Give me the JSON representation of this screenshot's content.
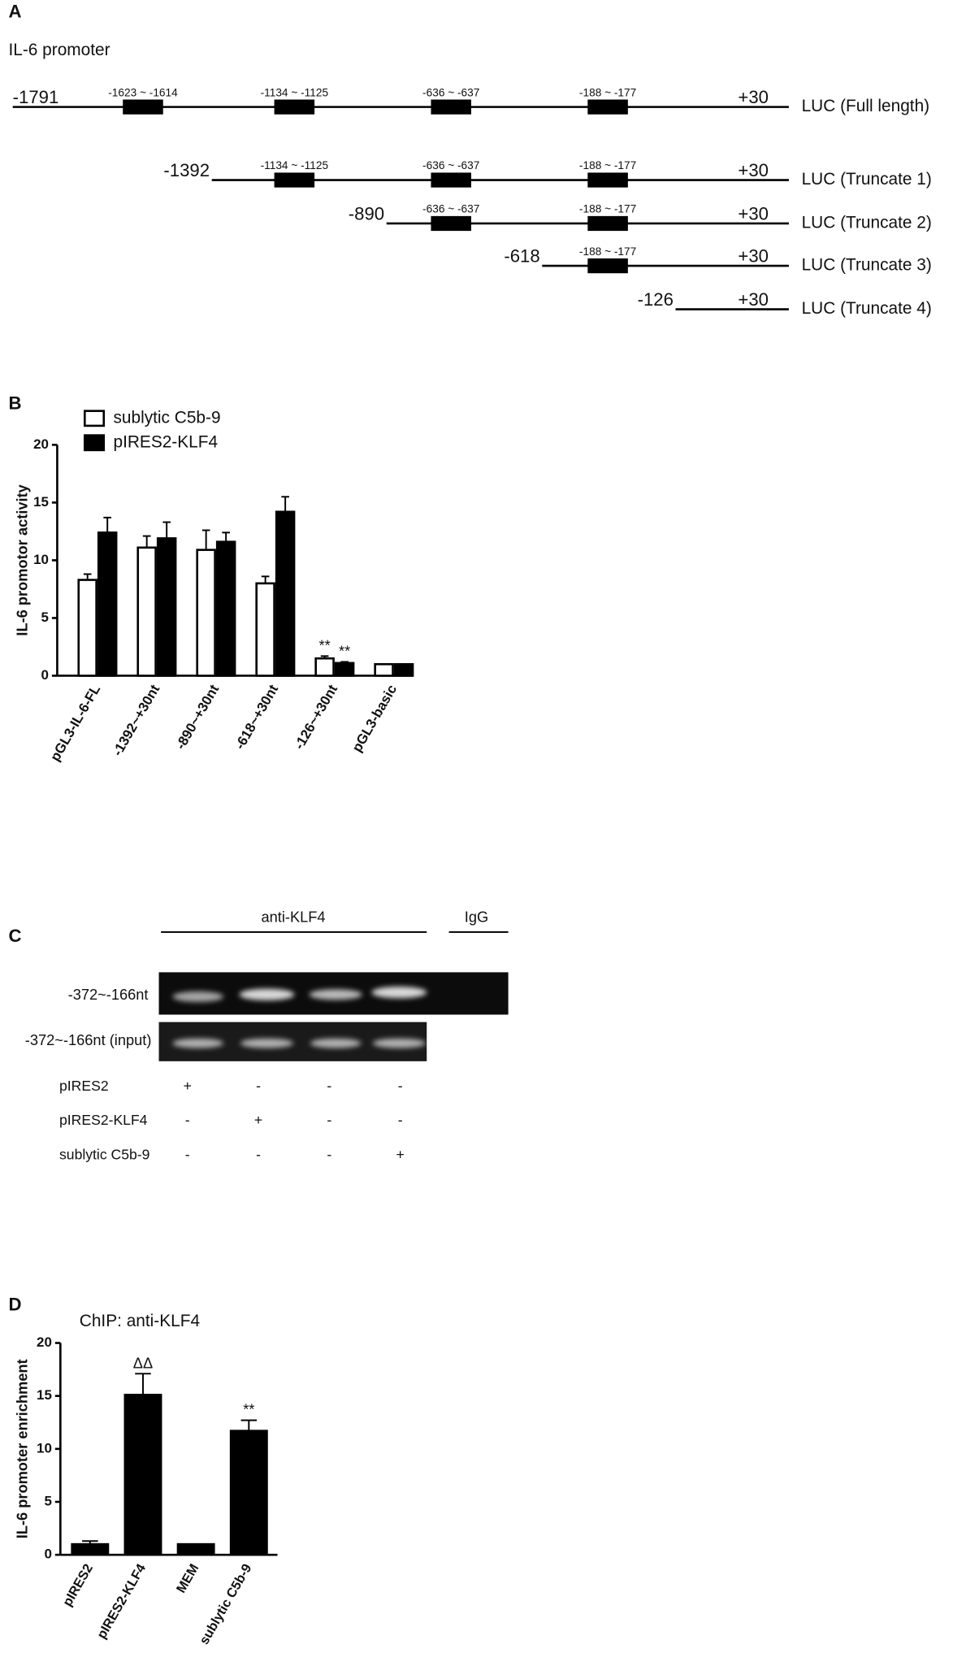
{
  "panel_a": {
    "label": "A",
    "title": "IL-6 promoter",
    "constructs": [
      {
        "start": "-1791",
        "end": "+30",
        "name": "LUC (Full length)",
        "sites": [
          "-1623 ~ -1614",
          "-1134 ~ -1125",
          "-636 ~ -637",
          "-188 ~ -177"
        ]
      },
      {
        "start": "-1392",
        "end": "+30",
        "name": "LUC (Truncate 1)",
        "sites": [
          "-1134 ~ -1125",
          "-636 ~ -637",
          "-188 ~ -177"
        ]
      },
      {
        "start": "-890",
        "end": "+30",
        "name": "LUC (Truncate 2)",
        "sites": [
          "-636 ~ -637",
          "-188 ~ -177"
        ]
      },
      {
        "start": "-618",
        "end": "+30",
        "name": "LUC (Truncate 3)",
        "sites": [
          "-188 ~ -177"
        ]
      },
      {
        "start": "-126",
        "end": "+30",
        "name": "LUC (Truncate 4)",
        "sites": []
      }
    ]
  },
  "panel_c": {
    "label": "C",
    "group_label": "anti-KLF4",
    "control_label": "IgG",
    "rows": [
      "-372~-166nt",
      "-372~-166nt (input)"
    ],
    "treatments": [
      {
        "name": "pIRES2",
        "signs": [
          "+",
          "-",
          "-",
          "-"
        ]
      },
      {
        "name": "pIRES2-KLF4",
        "signs": [
          "-",
          "+",
          "-",
          "-"
        ]
      },
      {
        "name": "sublytic C5b-9",
        "signs": [
          "-",
          "-",
          "-",
          "+"
        ]
      }
    ]
  },
  "chart_data": [
    {
      "type": "bar",
      "panel": "B",
      "y_label": "IL-6 promotor activity",
      "categories": [
        "pGL3-IL-6-FL",
        "-1392~+30nt",
        "-890~+30nt",
        "-618~+30nt",
        "-126~+30nt",
        "pGL3-basic"
      ],
      "series": [
        {
          "name": "sublytic C5b-9",
          "color": "#ffffff",
          "values": [
            8.3,
            11.1,
            10.9,
            8.0,
            1.5,
            1.0
          ],
          "errors": [
            0.5,
            1.0,
            1.7,
            0.6,
            0.2,
            0
          ],
          "annotations": [
            null,
            null,
            null,
            null,
            "**",
            null
          ]
        },
        {
          "name": "pIRES2-KLF4",
          "color": "#000000",
          "values": [
            12.4,
            11.9,
            11.6,
            14.2,
            1.1,
            1.0
          ],
          "errors": [
            1.3,
            1.4,
            0.8,
            1.3,
            0.1,
            0
          ],
          "annotations": [
            null,
            null,
            null,
            null,
            "**",
            null
          ]
        }
      ],
      "ylim": [
        0,
        20
      ],
      "yticks": [
        0,
        5,
        10,
        15,
        20
      ],
      "legend": "upper left"
    },
    {
      "type": "bar",
      "panel": "D",
      "title": "ChIP: anti-KLF4",
      "y_label": "IL-6 promoter enrichment",
      "categories": [
        "pIRES2",
        "pIRES2-KLF4",
        "MEM",
        "sublytic C5b-9"
      ],
      "values": [
        1.0,
        15.1,
        1.0,
        11.7
      ],
      "errors": [
        0.3,
        2.0,
        0,
        1.0
      ],
      "annotations": [
        null,
        "ΔΔ",
        null,
        "**"
      ],
      "color": "#000000",
      "ylim": [
        0,
        20
      ],
      "yticks": [
        0,
        5,
        10,
        15,
        20
      ]
    }
  ]
}
